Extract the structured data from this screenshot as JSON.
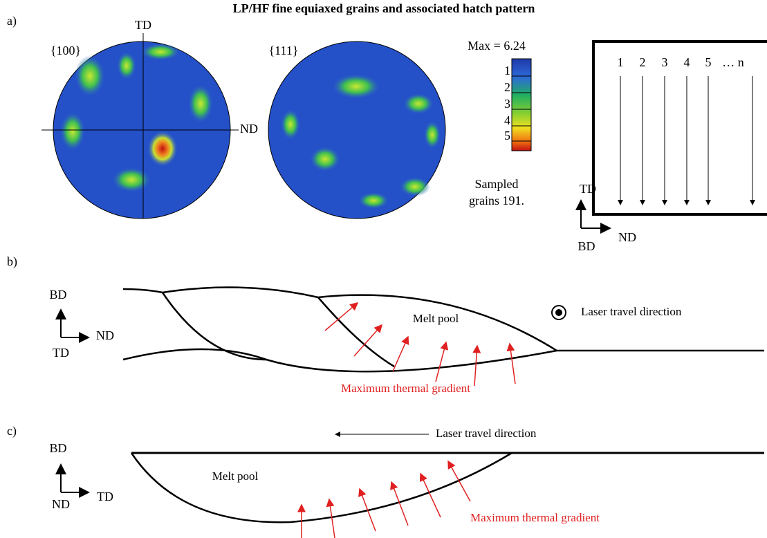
{
  "title": "LP/HF fine equiaxed grains and associated hatch pattern",
  "panel_a": {
    "label": "a)",
    "pole_figures": [
      {
        "label": "{100}",
        "top": "TD",
        "right": "ND"
      },
      {
        "label": "{111}"
      }
    ],
    "colorbar": {
      "max_label": "Max = 6.24",
      "ticks": [
        1,
        2,
        3,
        4,
        5
      ]
    },
    "sampled": [
      "Sampled",
      "grains 191."
    ],
    "hatch": {
      "tracks": [
        "1",
        "2",
        "3",
        "4",
        "5",
        "… n"
      ],
      "axes": {
        "up": "TD",
        "right": "ND",
        "origin": "BD"
      }
    }
  },
  "panel_b": {
    "label": "b)",
    "axes": {
      "up": "BD",
      "right": "ND",
      "origin": "TD"
    },
    "melt_pool": "Melt pool",
    "laser": "Laser travel direction",
    "gradient": "Maximum thermal gradient"
  },
  "panel_c": {
    "label": "c)",
    "axes": {
      "up": "BD",
      "right": "TD",
      "origin": "ND"
    },
    "melt_pool": "Melt pool",
    "laser": "Laser travel direction",
    "gradient": "Maximum thermal gradient"
  }
}
